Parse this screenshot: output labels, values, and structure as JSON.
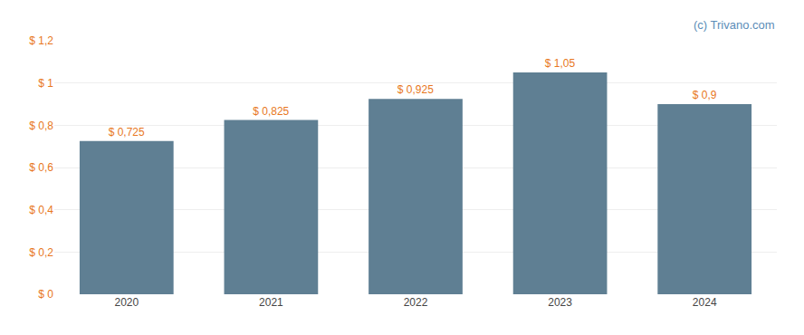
{
  "chart_data": {
    "type": "bar",
    "categories": [
      "2020",
      "2021",
      "2022",
      "2023",
      "2024"
    ],
    "values": [
      0.725,
      0.825,
      0.925,
      1.05,
      0.9
    ],
    "value_labels": [
      "$ 0,725",
      "$ 0,825",
      "$ 0,925",
      "$ 1,05",
      "$ 0,9"
    ],
    "data_labels": true,
    "color": "#5f7f93",
    "ylim": [
      0,
      1.2
    ],
    "yticks": [
      {
        "value": 0,
        "label": "$ 0"
      },
      {
        "value": 0.2,
        "label": "$ 0,2"
      },
      {
        "value": 0.4,
        "label": "$ 0,4"
      },
      {
        "value": 0.6,
        "label": "$ 0,6"
      },
      {
        "value": 0.8,
        "label": "$ 0,8"
      },
      {
        "value": 1.0,
        "label": "$ 1"
      },
      {
        "value": 1.2,
        "label": "$ 1,2"
      }
    ],
    "grid": true,
    "annotations": [
      "(c) Trivano.com"
    ]
  }
}
